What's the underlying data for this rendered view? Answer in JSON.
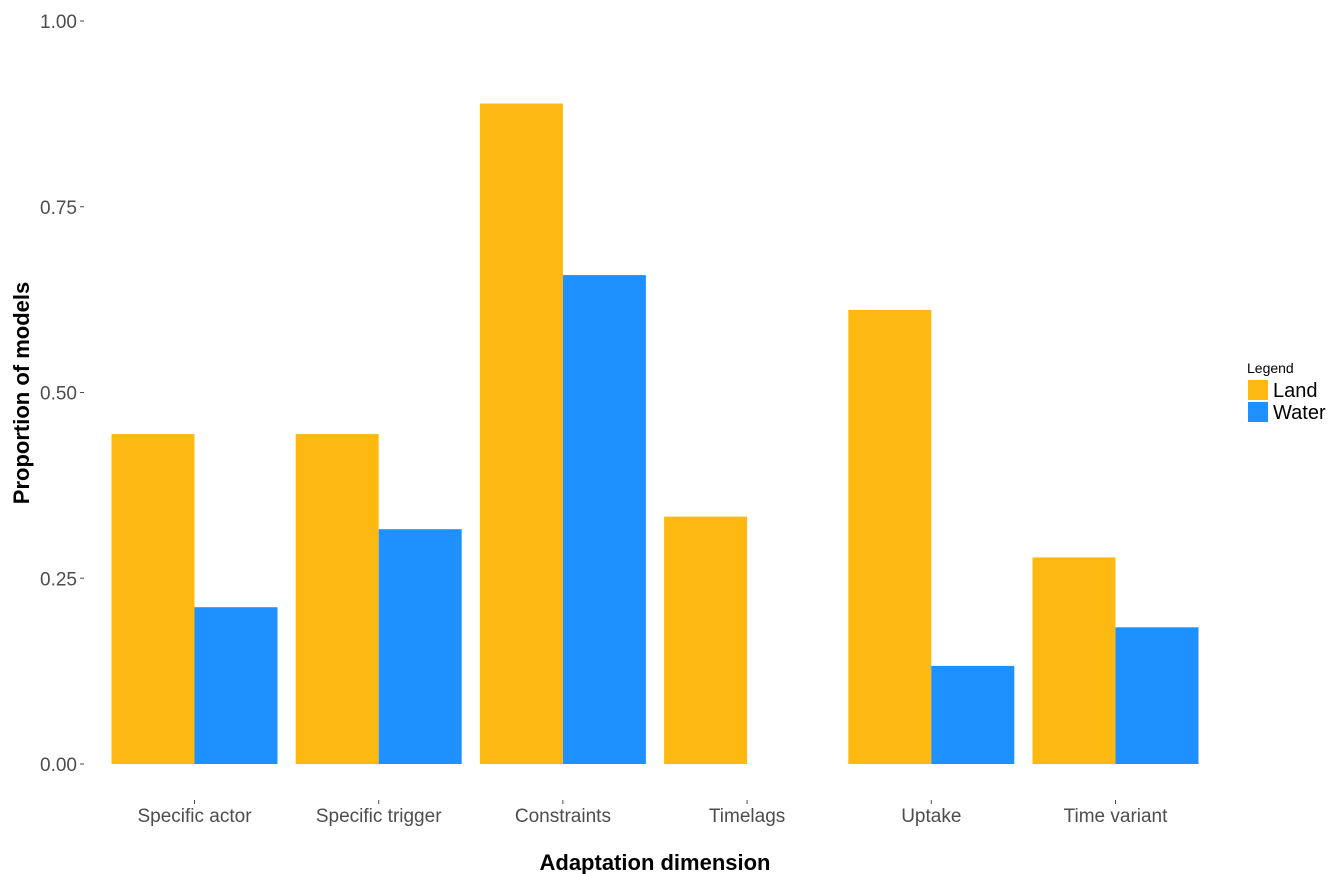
{
  "chart_data": {
    "type": "bar",
    "title": "",
    "xlabel": "Adaptation dimension",
    "ylabel": "Proportion of models",
    "ylim": [
      0,
      1
    ],
    "yticks": [
      "0.00",
      "0.25",
      "0.50",
      "0.75",
      "1.00"
    ],
    "categories": [
      "Specific actor",
      "Specific trigger",
      "Constraints",
      "Timelags",
      "Uptake",
      "Time variant"
    ],
    "series": [
      {
        "name": "Land",
        "color": "#FDB812",
        "values": [
          0.444,
          0.444,
          0.889,
          0.333,
          0.611,
          0.278
        ]
      },
      {
        "name": "Water",
        "color": "#1E90FF",
        "values": [
          0.211,
          0.316,
          0.658,
          0.0,
          0.132,
          0.184
        ]
      }
    ],
    "grid": false,
    "legend": {
      "title": "Legend",
      "position": "right"
    }
  }
}
